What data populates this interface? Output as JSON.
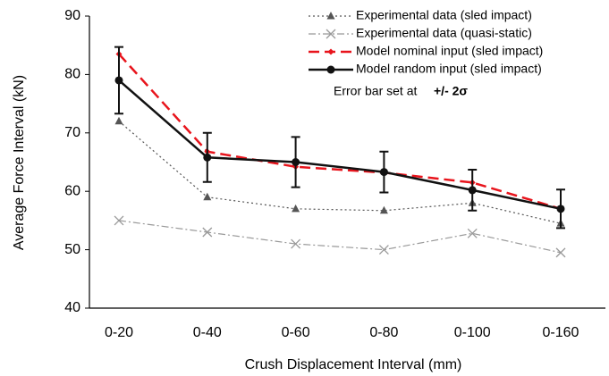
{
  "chart_data": {
    "type": "line",
    "xlabel": "Crush Displacement Interval (mm)",
    "ylabel": "Average Force Interval (kN)",
    "categories": [
      "0-20",
      "0-40",
      "0-60",
      "0-80",
      "0-100",
      "0-160"
    ],
    "ylim": [
      40,
      90
    ],
    "yticks": [
      40,
      50,
      60,
      70,
      80,
      90
    ],
    "annotation": "Error bar set at",
    "annotation_sigma": "+/- 2σ",
    "legend": "upper right",
    "series": [
      {
        "name": "Experimental data (sled impact)",
        "color": "#555555",
        "marker": "triangle",
        "line_style": "dotted",
        "values": [
          72,
          59,
          57,
          56.7,
          58,
          54.5
        ]
      },
      {
        "name": "Experimental data (quasi-static)",
        "color": "#999999",
        "marker": "x",
        "line_style": "dashdot",
        "values": [
          55,
          53,
          51,
          50,
          52.8,
          49.5
        ]
      },
      {
        "name": "Model nominal input (sled impact)",
        "color": "#e8141c",
        "marker": "diamond",
        "line_style": "dashed",
        "values": [
          83.5,
          66.8,
          64.2,
          63.2,
          61.5,
          57
        ]
      },
      {
        "name": "Model random input (sled impact)",
        "color": "#111111",
        "marker": "circle",
        "line_style": "solid",
        "values": [
          79,
          65.8,
          65,
          63.3,
          60.2,
          57
        ],
        "errors": [
          5.7,
          4.2,
          4.3,
          3.5,
          3.5,
          3.3
        ]
      }
    ]
  }
}
